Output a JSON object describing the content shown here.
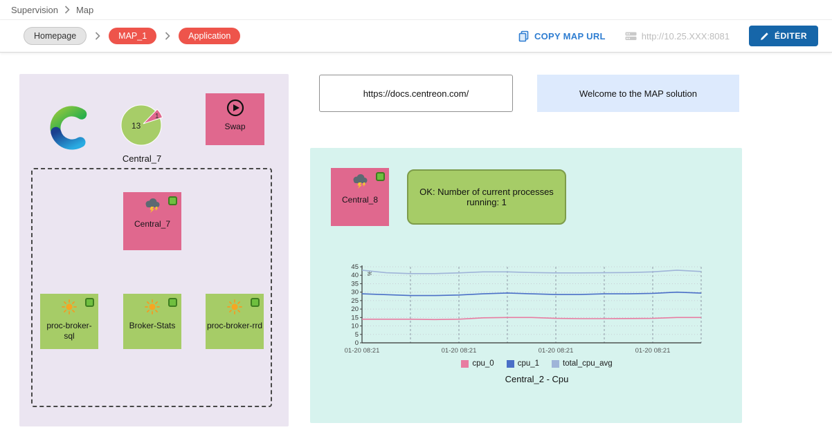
{
  "breadcrumb": {
    "section": "Supervision",
    "page": "Map"
  },
  "toolbar": {
    "homepage_label": "Homepage",
    "map_label": "MAP_1",
    "application_label": "Application",
    "copy_map_url_label": "COPY MAP URL",
    "server_url": "http://10.25.XXX:8081",
    "edit_label": "ÉDITER"
  },
  "map": {
    "pie_widget": {
      "value_major": "13",
      "value_minor": "1",
      "label": "Central_7"
    },
    "swap_node": {
      "label": "Swap"
    },
    "central7_node": {
      "label": "Central_7"
    },
    "service_nodes": [
      {
        "label": "proc-broker-sql"
      },
      {
        "label": "Broker-Stats"
      },
      {
        "label": "proc-broker-rrd"
      }
    ],
    "docs_widget": {
      "text": "https://docs.centreon.com/"
    },
    "welcome_widget": {
      "text": "Welcome to the MAP solution"
    },
    "central8_node": {
      "label": "Central_8"
    },
    "status_widget": {
      "text": "OK: Number of current processes running: 1"
    }
  },
  "colors": {
    "accent_blue": "#2e7dd1",
    "edit_button_blue": "#1666a9",
    "pill_red": "#ee544b",
    "node_pink": "#e0688e",
    "node_green": "#a6cc67",
    "status_ok_green": "#6fbf3f",
    "panel_lavender": "#ebe5f1",
    "panel_teal": "#d7f3ee",
    "welcome_blue": "#ddeafd"
  },
  "chart_data": {
    "type": "line",
    "title": "Central_2 - Cpu",
    "xlabel": "",
    "ylabel": "%",
    "ylim": [
      0,
      45
    ],
    "yticks": [
      0,
      5,
      10,
      15,
      20,
      25,
      30,
      35,
      40,
      45
    ],
    "xtick_labels": [
      "01-20 08:21",
      "01-20 08:21",
      "01-20 08:21",
      "01-20 08:21"
    ],
    "grid": true,
    "legend_position": "bottom",
    "series": [
      {
        "name": "cpu_0",
        "color": "#e87ca1",
        "values": [
          14,
          14,
          14,
          13.8,
          14,
          14.8,
          15,
          15,
          14.5,
          14.3,
          14.3,
          14.4,
          14.5,
          15,
          15
        ]
      },
      {
        "name": "cpu_1",
        "color": "#4a6fc7",
        "values": [
          29,
          28.5,
          28,
          28,
          28.3,
          29,
          29.5,
          29,
          28.6,
          28.6,
          29,
          29,
          29.3,
          30,
          29.4
        ]
      },
      {
        "name": "total_cpu_avg",
        "color": "#9fb4d8",
        "values": [
          43,
          41.5,
          41,
          41,
          41.4,
          42,
          42,
          41.6,
          41.4,
          41.4,
          41.5,
          41.6,
          42,
          43,
          42.2
        ]
      }
    ]
  }
}
